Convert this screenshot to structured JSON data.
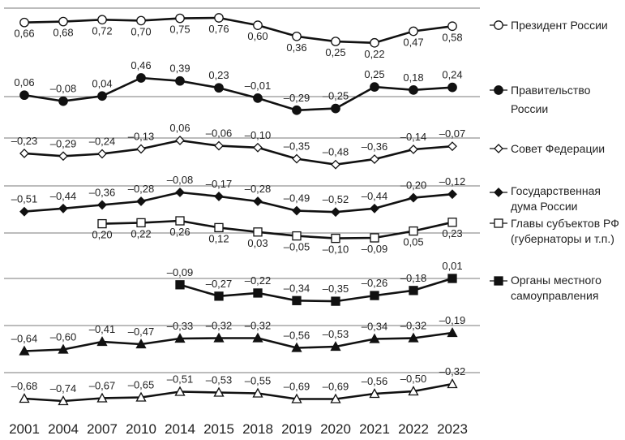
{
  "chart_data": {
    "type": "line",
    "title": "",
    "xlabel": "",
    "ylabel": "",
    "grid": false,
    "legend_placement": "right",
    "categories": [
      "2001",
      "2004",
      "2007",
      "2010",
      "2014",
      "2015",
      "2018",
      "2019",
      "2020",
      "2021",
      "2022",
      "2023"
    ],
    "series": [
      {
        "name": "Президент России",
        "legend_lines": [
          "Президент России"
        ],
        "marker": "circle",
        "fill": "#ffffff",
        "values": [
          0.66,
          0.68,
          0.72,
          0.7,
          0.75,
          0.76,
          0.6,
          0.36,
          0.25,
          0.22,
          0.47,
          0.58
        ],
        "labels": [
          "0,66",
          "0,68",
          "0,72",
          "0,70",
          "0,75",
          "0,76",
          "0,60",
          "0,36",
          "0,25",
          "0,22",
          "0,47",
          "0,58"
        ]
      },
      {
        "name": "Правительство России",
        "legend_lines": [
          "Правительство",
          "России"
        ],
        "marker": "circle",
        "fill": "#111111",
        "values": [
          0.06,
          -0.08,
          0.04,
          0.46,
          0.39,
          0.23,
          -0.01,
          -0.29,
          -0.25,
          0.25,
          0.18,
          0.24
        ],
        "labels": [
          "0,06",
          "–0,08",
          "0,04",
          "0,46",
          "0,39",
          "0,23",
          "–0,01",
          "–0,29",
          "–0,25",
          "0,25",
          "0,18",
          "0,24"
        ]
      },
      {
        "name": "Совет Федерации",
        "legend_lines": [
          "Совет Федерации"
        ],
        "marker": "diamond",
        "fill": "#ffffff",
        "values": [
          -0.23,
          -0.29,
          -0.24,
          -0.13,
          0.06,
          -0.06,
          -0.1,
          -0.35,
          -0.48,
          -0.36,
          -0.14,
          -0.07
        ],
        "labels": [
          "–0,23",
          "–0,29",
          "–0,24",
          "–0,13",
          "0,06",
          "–0,06",
          "–0,10",
          "–0,35",
          "–0,48",
          "–0,36",
          "–0,14",
          "–0,07"
        ]
      },
      {
        "name": "Государственная дума России",
        "legend_lines": [
          "Государственная",
          "дума России"
        ],
        "marker": "diamond",
        "fill": "#111111",
        "values": [
          -0.51,
          -0.44,
          -0.36,
          -0.28,
          -0.08,
          -0.17,
          -0.28,
          -0.49,
          -0.52,
          -0.44,
          -0.2,
          -0.12
        ],
        "labels": [
          "–0,51",
          "–0,44",
          "–0,36",
          "–0,28",
          "–0,08",
          "–0,17",
          "–0,28",
          "–0,49",
          "–0,52",
          "–0,44",
          "–0,20",
          "–0,12"
        ]
      },
      {
        "name": "Главы субъектов РФ (губернаторы и т.п.)",
        "legend_lines": [
          "Главы субъектов РФ",
          "(губернаторы и т.п.)"
        ],
        "marker": "square",
        "fill": "#ffffff",
        "values": [
          null,
          null,
          0.2,
          0.22,
          0.26,
          0.12,
          0.03,
          -0.05,
          -0.1,
          -0.09,
          0.05,
          0.23
        ],
        "labels": [
          null,
          null,
          "0,20",
          "0,22",
          "0,26",
          "0,12",
          "0,03",
          "–0,05",
          "–0,10",
          "–0,09",
          "0,05",
          "0,23"
        ]
      },
      {
        "name": "Органы местного самоуправления",
        "legend_lines": [
          "Органы местного",
          "самоуправления"
        ],
        "marker": "square",
        "fill": "#111111",
        "values": [
          null,
          null,
          null,
          null,
          -0.09,
          -0.27,
          -0.22,
          -0.34,
          -0.35,
          -0.26,
          -0.18,
          0.01
        ],
        "labels": [
          null,
          null,
          null,
          null,
          "–0,09",
          "–0,27",
          "–0,22",
          "–0,34",
          "–0,35",
          "–0,26",
          "–0,18",
          "0,01"
        ]
      },
      {
        "name": "",
        "legend_lines": [],
        "marker": "triangle",
        "fill": "#111111",
        "values": [
          -0.64,
          -0.6,
          -0.41,
          -0.47,
          -0.33,
          -0.32,
          -0.32,
          -0.56,
          -0.53,
          -0.34,
          -0.32,
          -0.19
        ],
        "labels": [
          "–0,64",
          "–0,60",
          "–0,41",
          "–0,47",
          "–0,33",
          "–0,32",
          "–0,32",
          "–0,56",
          "–0,53",
          "–0,34",
          "–0,32",
          "–0,19"
        ]
      },
      {
        "name": "",
        "legend_lines": [],
        "marker": "triangle",
        "fill": "#ffffff",
        "values": [
          -0.68,
          -0.74,
          -0.67,
          -0.65,
          -0.51,
          -0.53,
          -0.55,
          -0.69,
          -0.69,
          -0.56,
          -0.5,
          -0.32
        ],
        "labels": [
          "–0,68",
          "–0,74",
          "–0,67",
          "–0,65",
          "–0,51",
          "–0,53",
          "–0,55",
          "–0,69",
          "–0,69",
          "–0,56",
          "–0,50",
          "–0,32"
        ]
      }
    ]
  }
}
